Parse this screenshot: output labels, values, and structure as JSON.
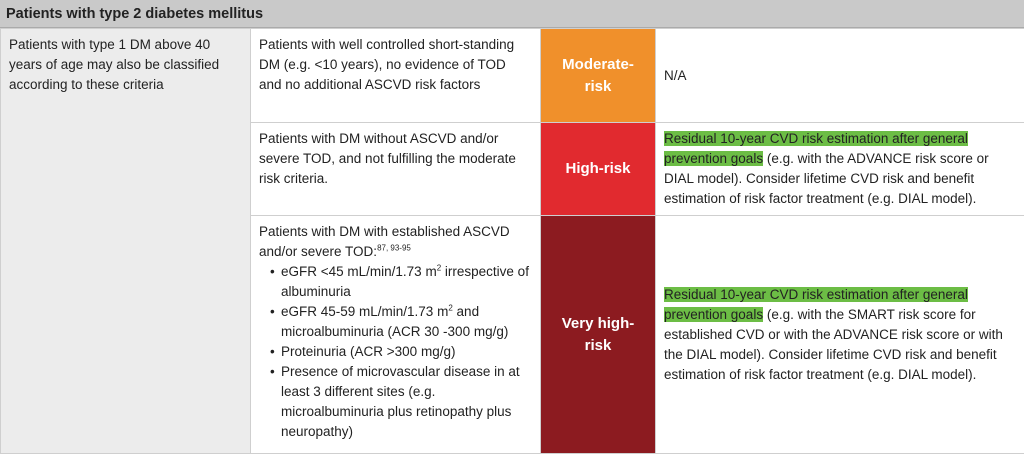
{
  "header": {
    "title": "Patients with type 2 diabetes mellitus"
  },
  "note": "Patients with type 1 DM above 40 years of age may also be classified according to these criteria",
  "rows": [
    {
      "criteria": "Patients with well controlled short-standing DM (e.g. <10 years), no evidence of TOD and no additional ASCVD risk factors",
      "risk": "Moderate-risk",
      "recommendation": "N/A"
    },
    {
      "criteria": "Patients with DM without ASCVD and/or severe TOD, and not fulfilling the moderate risk criteria.",
      "risk": "High-risk",
      "recommendation": {
        "highlight": "Residual 10-year CVD risk estimation after general prevention goals",
        "text": "(e.g. with the ADVANCE risk score or DIAL model). Consider lifetime CVD risk and benefit estimation of risk factor treatment (e.g. DIAL model)."
      }
    },
    {
      "criteria": {
        "intro": "Patients with DM with established ASCVD and/or severe TOD:",
        "refs": "87, 93-95",
        "items": [
          {
            "text": "eGFR <45 mL/min/1.73 m",
            "sup": "2",
            "rest": "irrespective of albuminuria"
          },
          {
            "text": "eGFR 45-59 mL/min/1.73 m",
            "sup": "2",
            "rest": "and microalbuminuria (ACR 30 -300 mg/g)"
          },
          {
            "text": "Proteinuria (ACR >300 mg/g)"
          },
          {
            "text": "Presence of microvascular disease in at least 3 different sites (e.g. microalbuminuria plus retinopathy plus neuropathy)"
          }
        ]
      },
      "risk": "Very high-risk",
      "recommendation": {
        "highlight": "Residual 10-year CVD risk estimation after general prevention goals",
        "text": "(e.g. with the SMART risk score for established CVD or with the ADVANCE risk score or with the DIAL model). Consider lifetime CVD risk and benefit estimation of risk factor treatment (e.g. DIAL model)."
      }
    }
  ]
}
